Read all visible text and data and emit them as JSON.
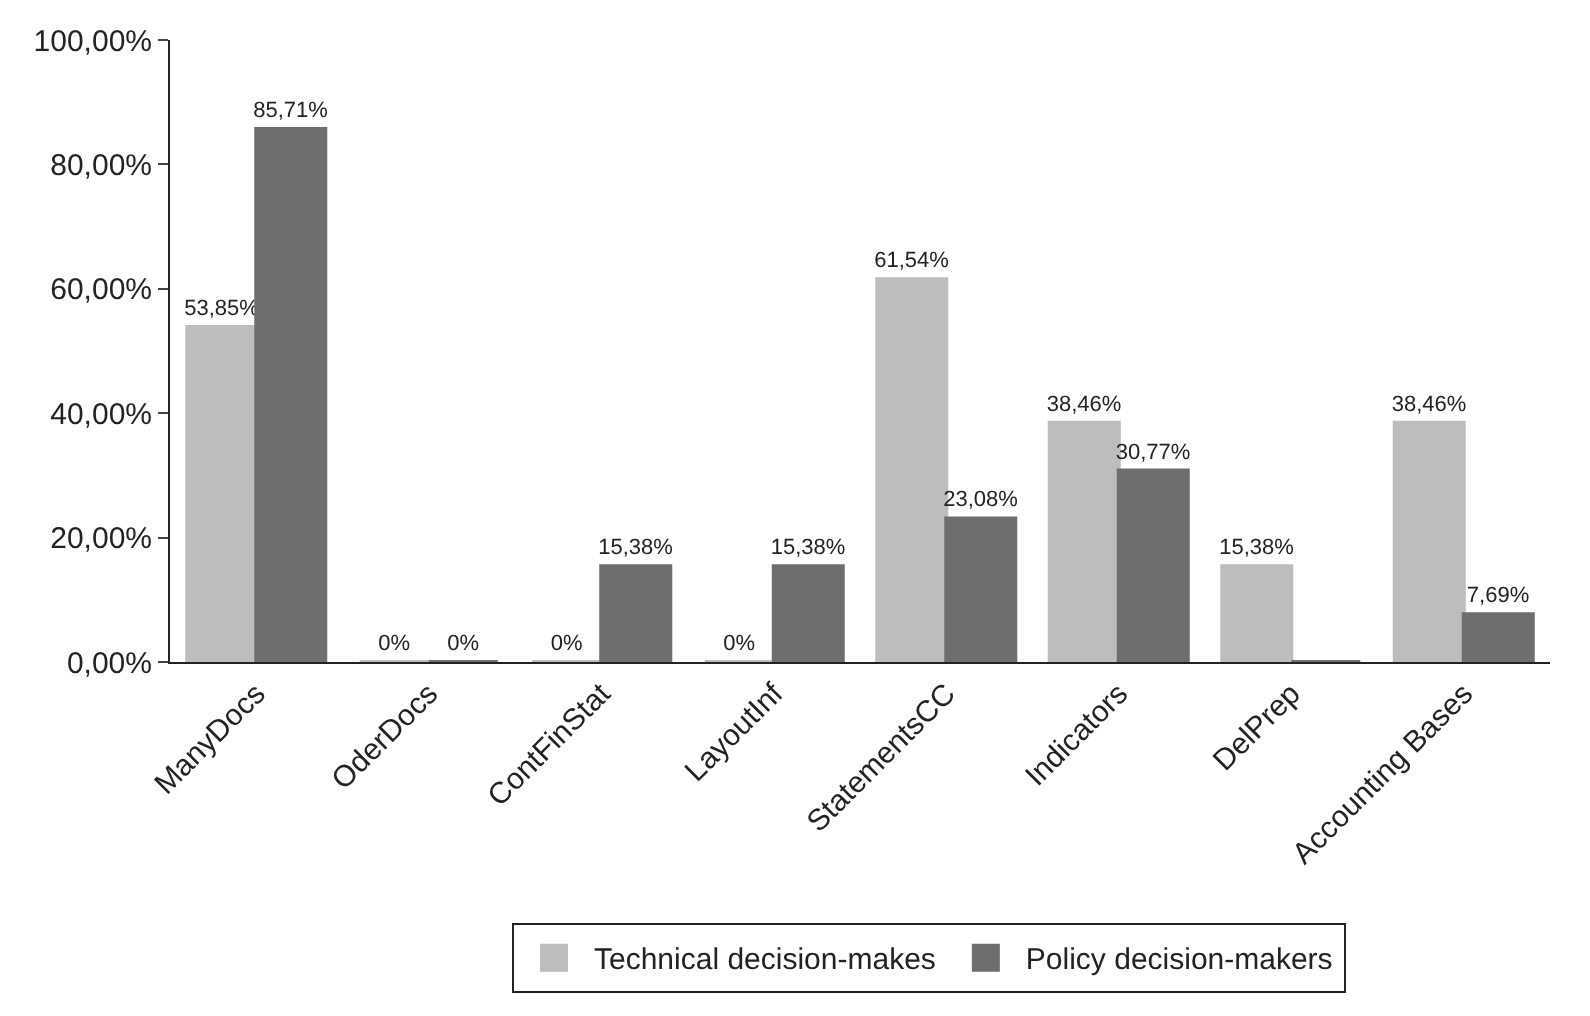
{
  "chart_data": {
    "type": "bar",
    "categories": [
      "ManyDocs",
      "OderDocs",
      "ContFinStat",
      "LayoutInf",
      "StatementsCC",
      "Indicators",
      "DelPrep",
      "Accounting Bases"
    ],
    "series": [
      {
        "name": "Technical decision-makes",
        "color": "#bdbdbd",
        "values": [
          53.85,
          0,
          0,
          0,
          61.54,
          38.46,
          15.38,
          38.46
        ],
        "value_labels": [
          "53,85%",
          "0%",
          "0%",
          "0%",
          "61,54%",
          "38,46%",
          "15,38%",
          "38,46%"
        ]
      },
      {
        "name": "Policy decision-makers",
        "color": "#6e6e6e",
        "values": [
          85.71,
          0,
          15.38,
          15.38,
          23.08,
          30.77,
          0,
          7.69
        ],
        "value_labels": [
          "85,71%",
          "0%",
          "15,38%",
          "15,38%",
          "23,08%",
          "30,77%",
          null,
          "7,69%"
        ]
      }
    ],
    "ylim": [
      0,
      100
    ],
    "yticks": [
      {
        "value": 0,
        "label": "0,00%"
      },
      {
        "value": 20,
        "label": "20,00%"
      },
      {
        "value": 40,
        "label": "40,00%"
      },
      {
        "value": 60,
        "label": "60,00%"
      },
      {
        "value": 80,
        "label": "80,00%"
      },
      {
        "value": 100,
        "label": "100,00%"
      }
    ],
    "legend": "bottom"
  }
}
